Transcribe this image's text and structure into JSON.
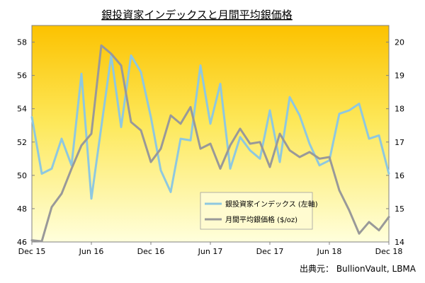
{
  "chart_data": {
    "type": "line",
    "title": "銀投資家インデックスと月間平均銀価格",
    "source": "出典元： BullionVault, LBMA",
    "x": [
      "2015-12",
      "2016-01",
      "2016-02",
      "2016-03",
      "2016-04",
      "2016-05",
      "2016-06",
      "2016-07",
      "2016-08",
      "2016-09",
      "2016-10",
      "2016-11",
      "2016-12",
      "2017-01",
      "2017-02",
      "2017-03",
      "2017-04",
      "2017-05",
      "2017-06",
      "2017-07",
      "2017-08",
      "2017-09",
      "2017-10",
      "2017-11",
      "2017-12",
      "2018-01",
      "2018-02",
      "2018-03",
      "2018-04",
      "2018-05",
      "2018-06",
      "2018-07",
      "2018-08",
      "2018-09",
      "2018-10",
      "2018-11",
      "2018-12"
    ],
    "x_tick_labels": [
      "Dec 15",
      "Jun 16",
      "Dec 16",
      "Jun 17",
      "Dec 17",
      "Jun 18",
      "Dec 18"
    ],
    "x_tick_indices": [
      0,
      6,
      12,
      18,
      24,
      30,
      36
    ],
    "y_left": {
      "min": 46,
      "max": 59,
      "ticks": [
        46,
        48,
        50,
        52,
        54,
        56,
        58
      ]
    },
    "y_right": {
      "min": 14,
      "max": 20.5,
      "ticks": [
        14,
        15,
        16,
        17,
        18,
        19,
        20
      ]
    },
    "grid": false,
    "legend_position": "lower-right",
    "series": [
      {
        "name": "銀投資家インデックス (左軸)",
        "axis": "left",
        "color": "#8ec8e0",
        "values": [
          53.5,
          50.1,
          50.4,
          52.2,
          50.6,
          56.1,
          48.6,
          52.9,
          57.2,
          52.9,
          57.2,
          56.2,
          53.5,
          50.3,
          49.0,
          52.2,
          52.1,
          56.6,
          53.1,
          55.5,
          50.4,
          52.3,
          51.5,
          51.0,
          53.9,
          50.8,
          54.7,
          53.6,
          51.9,
          50.6,
          50.9,
          53.7,
          53.9,
          54.3,
          52.2,
          52.4,
          50.1
        ]
      },
      {
        "name": "月間平均銀価格 ($/oz)",
        "axis": "right",
        "color": "#999999",
        "values": [
          14.05,
          14.02,
          15.05,
          15.45,
          16.2,
          16.9,
          17.25,
          19.9,
          19.65,
          19.3,
          17.6,
          17.35,
          16.4,
          16.8,
          17.8,
          17.55,
          18.05,
          16.8,
          16.95,
          16.2,
          16.9,
          17.4,
          16.95,
          17.0,
          16.25,
          17.25,
          16.75,
          16.55,
          16.7,
          16.5,
          16.55,
          15.55,
          14.95,
          14.25,
          14.6,
          14.35,
          14.75
        ]
      }
    ]
  }
}
